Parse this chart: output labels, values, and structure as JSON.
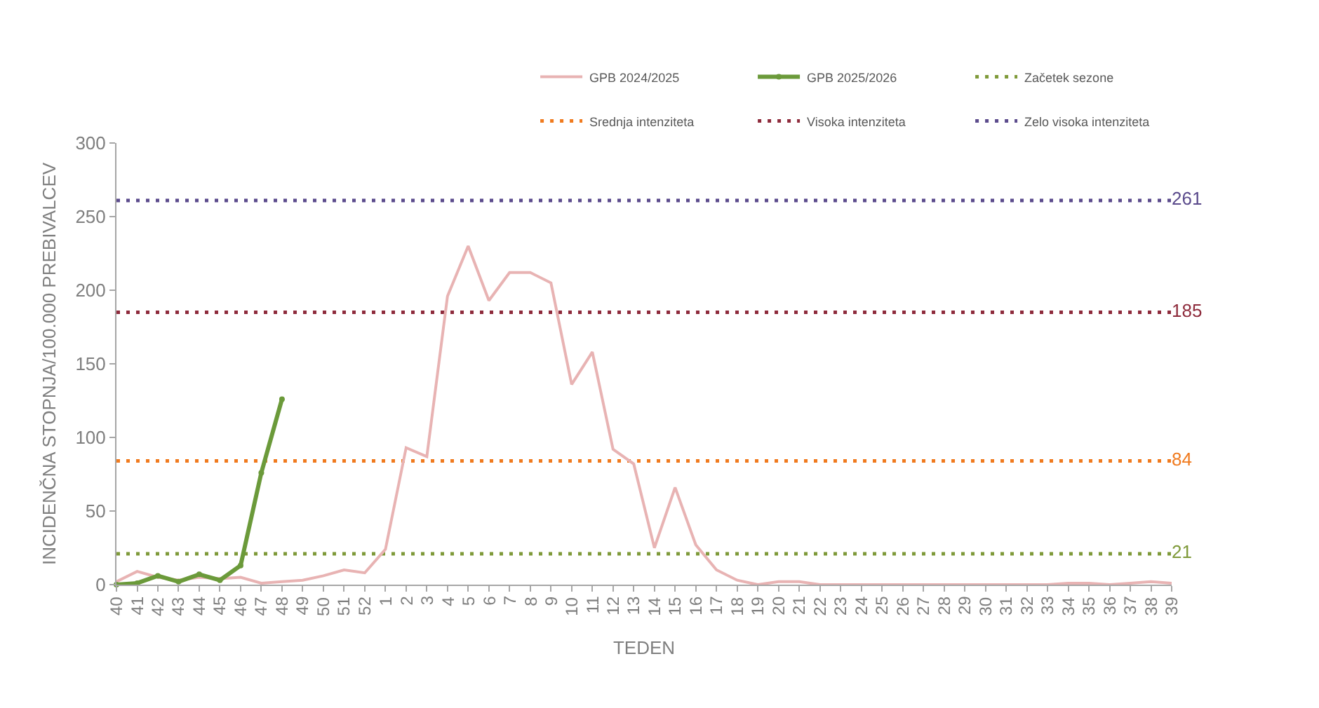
{
  "chart_data": {
    "type": "line",
    "xlabel": "TEDEN",
    "ylabel": "INCIDENČNA STOPNJA/100.000 PREBIVALCEV",
    "categories": [
      "40",
      "41",
      "42",
      "43",
      "44",
      "45",
      "46",
      "47",
      "48",
      "49",
      "50",
      "51",
      "52",
      "1",
      "2",
      "3",
      "4",
      "5",
      "6",
      "7",
      "8",
      "9",
      "10",
      "11",
      "12",
      "13",
      "14",
      "15",
      "16",
      "17",
      "18",
      "19",
      "20",
      "21",
      "22",
      "23",
      "24",
      "25",
      "26",
      "27",
      "28",
      "29",
      "30",
      "31",
      "32",
      "33",
      "34",
      "35",
      "36",
      "37",
      "38",
      "39"
    ],
    "series": [
      {
        "name": "GPB 2024/2025",
        "color": "#e8b3b3",
        "values": [
          2,
          9,
          5,
          3,
          5,
          4,
          5,
          1,
          2,
          3,
          6,
          10,
          8,
          24,
          93,
          87,
          196,
          230,
          193,
          212,
          212,
          205,
          136,
          158,
          92,
          82,
          25,
          66,
          27,
          10,
          3,
          0,
          2,
          2,
          0,
          0,
          0,
          0,
          0,
          0,
          0,
          0,
          0,
          0,
          0,
          0,
          1,
          1,
          0,
          1,
          2,
          1
        ]
      },
      {
        "name": "GPB 2025/2026",
        "color": "#6b9a3a",
        "marker": "circle",
        "values": [
          0,
          1,
          6,
          2,
          7,
          3,
          13,
          76,
          126,
          null,
          null,
          null,
          null,
          null,
          null,
          null,
          null,
          null,
          null,
          null,
          null,
          null,
          null,
          null,
          null,
          null,
          null,
          null,
          null,
          null,
          null,
          null,
          null,
          null,
          null,
          null,
          null,
          null,
          null,
          null,
          null,
          null,
          null,
          null,
          null,
          null,
          null,
          null,
          null,
          null,
          null,
          null
        ]
      },
      {
        "name": "Začetek sezone",
        "color": "#7f9a3a",
        "line_style": "dotted",
        "values": [
          21,
          21,
          21,
          21,
          21,
          21,
          21,
          21,
          21,
          21,
          21,
          21,
          21,
          21,
          21,
          21,
          21,
          21,
          21,
          21,
          21,
          21,
          21,
          21,
          21,
          21,
          21,
          21,
          21,
          21,
          21,
          21,
          21,
          21,
          21,
          21,
          21,
          21,
          21,
          21,
          21,
          21,
          21,
          21,
          21,
          21,
          21,
          21,
          21,
          21,
          21,
          21
        ],
        "value_labels": [
          null,
          null,
          null,
          null,
          null,
          null,
          null,
          null,
          null,
          null,
          null,
          null,
          null,
          null,
          null,
          null,
          null,
          null,
          null,
          null,
          null,
          null,
          null,
          null,
          null,
          null,
          null,
          null,
          null,
          null,
          null,
          null,
          null,
          null,
          null,
          null,
          null,
          null,
          null,
          null,
          null,
          null,
          null,
          null,
          null,
          null,
          null,
          null,
          null,
          null,
          null,
          "21"
        ]
      },
      {
        "name": "Srednja intenziteta",
        "color": "#f07a1e",
        "line_style": "dotted",
        "values": [
          84,
          84,
          84,
          84,
          84,
          84,
          84,
          84,
          84,
          84,
          84,
          84,
          84,
          84,
          84,
          84,
          84,
          84,
          84,
          84,
          84,
          84,
          84,
          84,
          84,
          84,
          84,
          84,
          84,
          84,
          84,
          84,
          84,
          84,
          84,
          84,
          84,
          84,
          84,
          84,
          84,
          84,
          84,
          84,
          84,
          84,
          84,
          84,
          84,
          84,
          84,
          84
        ],
        "value_labels": [
          null,
          null,
          null,
          null,
          null,
          null,
          null,
          null,
          null,
          null,
          null,
          null,
          null,
          null,
          null,
          null,
          null,
          null,
          null,
          null,
          null,
          null,
          null,
          null,
          null,
          null,
          null,
          null,
          null,
          null,
          null,
          null,
          null,
          null,
          null,
          null,
          null,
          null,
          null,
          null,
          null,
          null,
          null,
          null,
          null,
          null,
          null,
          null,
          null,
          null,
          null,
          "84"
        ]
      },
      {
        "name": "Visoka intenziteta",
        "color": "#8e2b3c",
        "line_style": "dotted",
        "values": [
          185,
          185,
          185,
          185,
          185,
          185,
          185,
          185,
          185,
          185,
          185,
          185,
          185,
          185,
          185,
          185,
          185,
          185,
          185,
          185,
          185,
          185,
          185,
          185,
          185,
          185,
          185,
          185,
          185,
          185,
          185,
          185,
          185,
          185,
          185,
          185,
          185,
          185,
          185,
          185,
          185,
          185,
          185,
          185,
          185,
          185,
          185,
          185,
          185,
          185,
          185,
          185
        ],
        "value_labels": [
          null,
          null,
          null,
          null,
          null,
          null,
          null,
          null,
          null,
          null,
          null,
          null,
          null,
          null,
          null,
          null,
          null,
          null,
          null,
          null,
          null,
          null,
          null,
          null,
          null,
          null,
          null,
          null,
          null,
          null,
          null,
          null,
          null,
          null,
          null,
          null,
          null,
          null,
          null,
          null,
          null,
          null,
          null,
          null,
          null,
          null,
          null,
          null,
          null,
          null,
          null,
          "185"
        ]
      },
      {
        "name": "Zelo visoka intenziteta",
        "color": "#5b4b8c",
        "line_style": "dotted",
        "values": [
          261,
          261,
          261,
          261,
          261,
          261,
          261,
          261,
          261,
          261,
          261,
          261,
          261,
          261,
          261,
          261,
          261,
          261,
          261,
          261,
          261,
          261,
          261,
          261,
          261,
          261,
          261,
          261,
          261,
          261,
          261,
          261,
          261,
          261,
          261,
          261,
          261,
          261,
          261,
          261,
          261,
          261,
          261,
          261,
          261,
          261,
          261,
          261,
          261,
          261,
          261,
          261
        ],
        "value_labels": [
          null,
          null,
          null,
          null,
          null,
          null,
          null,
          null,
          null,
          null,
          null,
          null,
          null,
          null,
          null,
          null,
          null,
          null,
          null,
          null,
          null,
          null,
          null,
          null,
          null,
          null,
          null,
          null,
          null,
          null,
          null,
          null,
          null,
          null,
          null,
          null,
          null,
          null,
          null,
          null,
          null,
          null,
          null,
          null,
          null,
          null,
          null,
          null,
          null,
          null,
          null,
          "261"
        ]
      }
    ],
    "ylim": [
      0,
      300
    ],
    "yticks": [
      0,
      50,
      100,
      150,
      200,
      250,
      300
    ],
    "legend": "top right"
  }
}
